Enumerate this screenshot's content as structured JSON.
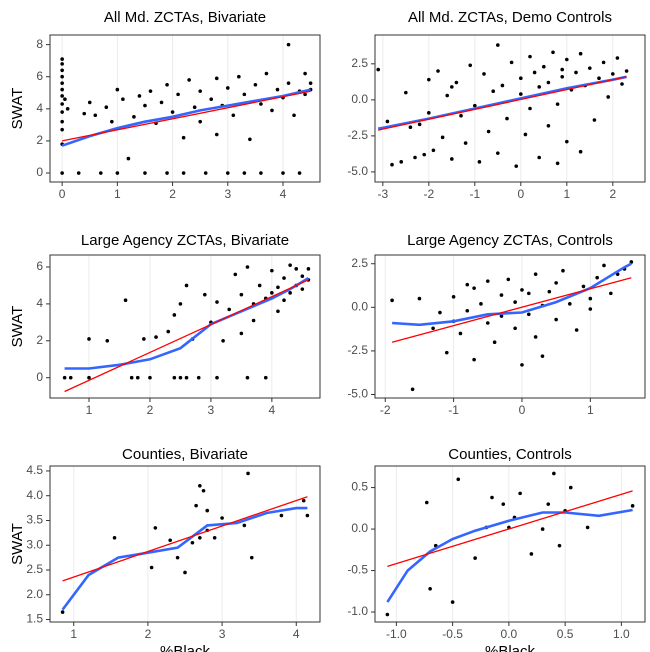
{
  "chart_data": [
    {
      "type": "scatter",
      "title": "All Md. ZCTAs, Bivariate",
      "ylabel": "SWAT",
      "grid": "x",
      "xlim": [
        -0.22,
        4.67
      ],
      "ylim": [
        -0.56,
        8.6
      ],
      "xticks": [
        0,
        1,
        2,
        3,
        4
      ],
      "yticks": [
        0,
        2,
        4,
        6,
        8
      ],
      "points": {
        "color": "#000000",
        "x": [
          0,
          0,
          0,
          0,
          0,
          0,
          0,
          0,
          0,
          0,
          0,
          0,
          0,
          0.05,
          0.1,
          0.3,
          0.4,
          0.5,
          0.6,
          0.7,
          0.8,
          0.9,
          1.0,
          1.0,
          1.1,
          1.2,
          1.3,
          1.4,
          1.5,
          1.5,
          1.6,
          1.7,
          1.8,
          1.9,
          1.9,
          2.0,
          2.1,
          2.2,
          2.2,
          2.3,
          2.4,
          2.5,
          2.5,
          2.6,
          2.7,
          2.8,
          2.8,
          2.9,
          3.0,
          3.0,
          3.1,
          3.2,
          3.3,
          3.3,
          3.4,
          3.5,
          3.6,
          3.6,
          3.7,
          3.8,
          3.9,
          4.0,
          4.0,
          4.1,
          4.1,
          4.2,
          4.3,
          4.3,
          4.4,
          4.4,
          4.5,
          4.5
        ],
        "y": [
          7.1,
          6.8,
          6.4,
          6.0,
          5.6,
          5.2,
          4.8,
          4.3,
          3.8,
          3.2,
          2.7,
          1.8,
          0,
          4.6,
          4.0,
          0,
          3.7,
          4.4,
          3.6,
          0,
          4.1,
          3.2,
          5.2,
          0,
          4.6,
          0.9,
          3.5,
          4.8,
          0,
          4.2,
          5.1,
          3.1,
          4.4,
          0,
          5.5,
          3.8,
          4.9,
          2.2,
          0,
          5.8,
          4.1,
          3.2,
          5.1,
          0,
          4.6,
          5.9,
          2.4,
          4.2,
          5.3,
          0,
          3.6,
          6.0,
          4.9,
          0,
          2.1,
          5.5,
          4.3,
          0,
          6.2,
          3.9,
          5.2,
          0,
          4.7,
          8.0,
          5.6,
          3.6,
          5.1,
          0,
          6.2,
          4.9,
          5.6,
          5.2
        ]
      },
      "fit": {
        "color": "#ff0000",
        "x": [
          0,
          4.5
        ],
        "y": [
          2.0,
          5.1
        ]
      },
      "smooth": {
        "color": "#3366ff",
        "x": [
          0,
          0.5,
          1,
          1.5,
          2,
          2.5,
          3,
          3.5,
          4,
          4.5
        ],
        "y": [
          1.7,
          2.3,
          2.8,
          3.2,
          3.5,
          3.9,
          4.2,
          4.5,
          4.8,
          5.2
        ]
      }
    },
    {
      "type": "scatter",
      "title": "All Md. ZCTAs, Demo Controls",
      "grid": "x",
      "xlim": [
        -3.17,
        2.7
      ],
      "ylim": [
        -5.7,
        4.5
      ],
      "xticks": [
        -3,
        -2,
        -1,
        0,
        1,
        2
      ],
      "yticks": [
        {
          "value": -5,
          "label": "-5.0"
        },
        {
          "value": -2.5,
          "label": "-2.5"
        },
        {
          "value": 0,
          "label": "0.0"
        },
        {
          "value": 2.5,
          "label": "2.5"
        }
      ],
      "points": {
        "color": "#000000",
        "x": [
          -3.1,
          -2.9,
          -2.8,
          -2.6,
          -2.5,
          -2.4,
          -2.3,
          -2.1,
          -2.0,
          -2.0,
          -1.9,
          -1.8,
          -1.7,
          -1.6,
          -1.5,
          -1.4,
          -1.3,
          -1.2,
          -1.1,
          -1.0,
          -0.9,
          -0.8,
          -0.7,
          -0.6,
          -0.5,
          -0.5,
          -0.4,
          -0.3,
          -0.2,
          -0.1,
          0,
          0,
          0.1,
          0.2,
          0.2,
          0.3,
          0.4,
          0.4,
          0.5,
          0.6,
          0.6,
          0.7,
          0.8,
          0.8,
          0.9,
          1.0,
          1.0,
          1.1,
          1.2,
          1.3,
          1.3,
          1.4,
          1.5,
          1.6,
          1.7,
          1.8,
          1.9,
          2.0,
          2.1,
          2.2,
          2.3,
          -2.2,
          -1.5,
          0.9
        ],
        "y": [
          2.1,
          -1.5,
          -4.5,
          -4.3,
          0.5,
          -1.9,
          -4.0,
          -3.8,
          1.4,
          -0.9,
          -3.5,
          2.0,
          -2.6,
          0.3,
          -4.1,
          1.2,
          -1.1,
          -3.0,
          2.4,
          -0.4,
          -4.3,
          1.8,
          -2.2,
          0.6,
          3.8,
          -3.7,
          1.0,
          -1.3,
          2.6,
          -4.6,
          0.4,
          1.5,
          -2.4,
          3.0,
          -0.6,
          1.9,
          -4.0,
          0.9,
          2.3,
          -1.8,
          1.2,
          3.3,
          -0.3,
          -4.4,
          1.6,
          2.8,
          -2.9,
          0.7,
          1.9,
          -3.6,
          3.2,
          1.0,
          2.2,
          -1.4,
          1.5,
          2.6,
          0.2,
          1.8,
          2.9,
          1.1,
          2.0,
          -1.7,
          0.9,
          2.1
        ]
      },
      "fit": {
        "color": "#ff0000",
        "x": [
          -3.1,
          2.3
        ],
        "y": [
          -2.1,
          1.6
        ]
      },
      "smooth": {
        "color": "#3366ff",
        "x": [
          -3.1,
          -2,
          -1,
          0,
          1,
          2,
          2.3
        ],
        "y": [
          -2.0,
          -1.3,
          -0.6,
          0.1,
          0.8,
          1.4,
          1.6
        ]
      }
    },
    {
      "type": "scatter",
      "title": "Large Agency ZCTAs, Bivariate",
      "ylabel": "SWAT",
      "grid": "x",
      "xlim": [
        0.36,
        4.79
      ],
      "ylim": [
        -1.1,
        6.65
      ],
      "xticks": [
        1,
        2,
        3,
        4
      ],
      "yticks": [
        0,
        2,
        4,
        6
      ],
      "points": {
        "color": "#000000",
        "x": [
          0.6,
          0.7,
          1.0,
          1.0,
          1.3,
          1.6,
          1.7,
          1.8,
          1.9,
          2.0,
          2.1,
          2.3,
          2.4,
          2.4,
          2.5,
          2.5,
          2.6,
          2.6,
          2.7,
          2.8,
          2.9,
          3.0,
          3.1,
          3.1,
          3.2,
          3.3,
          3.4,
          3.5,
          3.5,
          3.6,
          3.6,
          3.7,
          3.7,
          3.8,
          3.9,
          3.9,
          4.0,
          4.0,
          4.1,
          4.1,
          4.2,
          4.2,
          4.3,
          4.3,
          4.4,
          4.4,
          4.5,
          4.5,
          4.6,
          4.6
        ],
        "y": [
          0,
          0,
          2.1,
          0,
          2.0,
          4.2,
          0,
          0,
          2.1,
          0,
          2.2,
          2.5,
          0,
          3.4,
          4.0,
          0,
          0,
          5.0,
          2.1,
          0,
          4.5,
          3.0,
          4.1,
          0,
          2.0,
          3.7,
          5.6,
          2.4,
          4.5,
          6.0,
          0,
          4.0,
          3.1,
          5.0,
          4.3,
          0,
          4.6,
          5.8,
          3.6,
          4.9,
          5.4,
          4.2,
          6.1,
          4.6,
          5.0,
          5.9,
          5.5,
          4.8,
          5.3,
          5.9
        ]
      },
      "fit": {
        "color": "#ff0000",
        "x": [
          0.6,
          4.6
        ],
        "y": [
          -0.75,
          5.3
        ]
      },
      "smooth": {
        "color": "#3366ff",
        "x": [
          0.6,
          1,
          1.5,
          2,
          2.5,
          3,
          3.5,
          4,
          4.3,
          4.6
        ],
        "y": [
          0.5,
          0.5,
          0.7,
          1.0,
          1.6,
          2.9,
          3.6,
          4.3,
          4.8,
          5.4
        ]
      }
    },
    {
      "type": "scatter",
      "title": "Large Agency ZCTAs, Controls",
      "grid": "x",
      "xlim": [
        -2.15,
        1.8
      ],
      "ylim": [
        -5.2,
        3.0
      ],
      "xticks": [
        -2,
        -1,
        0,
        1
      ],
      "yticks": [
        {
          "value": -5,
          "label": "-5.0"
        },
        {
          "value": -2.5,
          "label": "-2.5"
        },
        {
          "value": 0,
          "label": "0.0"
        },
        {
          "value": 2.5,
          "label": "2.5"
        }
      ],
      "points": {
        "color": "#000000",
        "x": [
          -1.9,
          -1.6,
          -1.5,
          -1.3,
          -1.2,
          -1.1,
          -1.0,
          -0.9,
          -0.8,
          -0.7,
          -0.7,
          -0.6,
          -0.5,
          -0.5,
          -0.4,
          -0.3,
          -0.3,
          -0.2,
          -0.1,
          -0.1,
          0,
          0,
          0.1,
          0.1,
          0.2,
          0.2,
          0.3,
          0.3,
          0.4,
          0.5,
          0.5,
          0.6,
          0.7,
          0.8,
          0.9,
          1.0,
          1.0,
          1.1,
          1.2,
          1.3,
          1.4,
          1.5,
          1.6,
          -0.8,
          -1.0
        ],
        "y": [
          0.4,
          -4.7,
          0.5,
          -1.2,
          -0.3,
          -2.6,
          0.6,
          -1.5,
          -0.2,
          1.1,
          -3.0,
          0.2,
          -0.9,
          1.5,
          -2.0,
          0.7,
          -0.5,
          1.6,
          -1.2,
          0.3,
          -3.3,
          1.0,
          -0.4,
          0.8,
          -1.7,
          1.9,
          0.1,
          -2.8,
          0.9,
          -0.7,
          1.4,
          2.1,
          0.2,
          -1.3,
          1.2,
          0.5,
          -0.1,
          1.7,
          2.4,
          0.8,
          1.9,
          2.2,
          2.6,
          1.3,
          -0.8
        ]
      },
      "fit": {
        "color": "#ff0000",
        "x": [
          -1.9,
          1.6
        ],
        "y": [
          -2.0,
          1.7
        ]
      },
      "smooth": {
        "color": "#3366ff",
        "x": [
          -1.9,
          -1.5,
          -1,
          -0.5,
          0,
          0.5,
          1,
          1.5,
          1.6
        ],
        "y": [
          -0.9,
          -1.0,
          -0.8,
          -0.4,
          -0.3,
          0.3,
          1.1,
          2.3,
          2.5
        ]
      }
    },
    {
      "type": "scatter",
      "title": "Counties, Bivariate",
      "ylabel": "SWAT",
      "xlabel": "%Black",
      "grid": "x",
      "xlim": [
        0.68,
        4.32
      ],
      "ylim": [
        1.45,
        4.6
      ],
      "xticks": [
        1,
        2,
        3,
        4
      ],
      "yticks": [
        1.5,
        {
          "value": 2,
          "label": "2.0"
        },
        2.5,
        {
          "value": 3,
          "label": "3.0"
        },
        3.5,
        {
          "value": 4,
          "label": "4.0"
        },
        4.5
      ],
      "points": {
        "color": "#000000",
        "x": [
          0.85,
          1.55,
          2.05,
          2.1,
          2.3,
          2.4,
          2.5,
          2.6,
          2.65,
          2.7,
          2.7,
          2.75,
          2.8,
          2.8,
          2.9,
          3.0,
          3.3,
          3.35,
          3.4,
          3.8,
          4.1,
          4.15
        ],
        "y": [
          1.65,
          3.15,
          2.55,
          3.35,
          3.1,
          2.75,
          2.45,
          3.05,
          3.8,
          3.15,
          4.2,
          4.1,
          3.3,
          3.7,
          3.15,
          3.55,
          3.4,
          4.45,
          2.75,
          3.6,
          3.9,
          3.6
        ]
      },
      "fit": {
        "color": "#ff0000",
        "x": [
          0.85,
          4.15
        ],
        "y": [
          2.28,
          3.98
        ]
      },
      "smooth": {
        "color": "#3366ff",
        "x": [
          0.85,
          1.2,
          1.6,
          2.0,
          2.4,
          2.8,
          3.2,
          3.6,
          4.0,
          4.15
        ],
        "y": [
          1.7,
          2.4,
          2.75,
          2.85,
          2.95,
          3.4,
          3.45,
          3.65,
          3.75,
          3.75
        ]
      }
    },
    {
      "type": "scatter",
      "title": "Counties, Controls",
      "xlabel": "%Black",
      "grid": "x",
      "xlim": [
        -1.19,
        1.21
      ],
      "ylim": [
        -1.12,
        0.76
      ],
      "xticks": [
        {
          "value": -1,
          "label": "-1.0"
        },
        -0.5,
        {
          "value": 0,
          "label": "0.0"
        },
        0.5,
        {
          "value": 1,
          "label": "1.0"
        }
      ],
      "yticks": [
        {
          "value": -1,
          "label": "-1.0"
        },
        -0.5,
        {
          "value": 0,
          "label": "0.0"
        },
        0.5
      ],
      "points": {
        "color": "#000000",
        "x": [
          -1.08,
          -0.73,
          -0.7,
          -0.65,
          -0.5,
          -0.45,
          -0.3,
          -0.2,
          -0.15,
          -0.05,
          0.0,
          0.05,
          0.1,
          0.2,
          0.3,
          0.35,
          0.4,
          0.45,
          0.5,
          0.55,
          0.7,
          1.1
        ],
        "y": [
          -1.03,
          0.32,
          -0.72,
          -0.2,
          -0.88,
          0.6,
          -0.35,
          0.02,
          0.38,
          0.3,
          0.02,
          0.14,
          0.43,
          -0.3,
          0.0,
          0.3,
          0.67,
          -0.2,
          0.22,
          0.5,
          0.02,
          0.28
        ]
      },
      "fit": {
        "color": "#ff0000",
        "x": [
          -1.08,
          1.1
        ],
        "y": [
          -0.45,
          0.46
        ]
      },
      "smooth": {
        "color": "#3366ff",
        "x": [
          -1.08,
          -0.9,
          -0.7,
          -0.5,
          -0.3,
          0,
          0.3,
          0.5,
          0.8,
          1.1
        ],
        "y": [
          -0.88,
          -0.5,
          -0.27,
          -0.12,
          -0.02,
          0.1,
          0.2,
          0.2,
          0.16,
          0.23
        ]
      }
    }
  ]
}
